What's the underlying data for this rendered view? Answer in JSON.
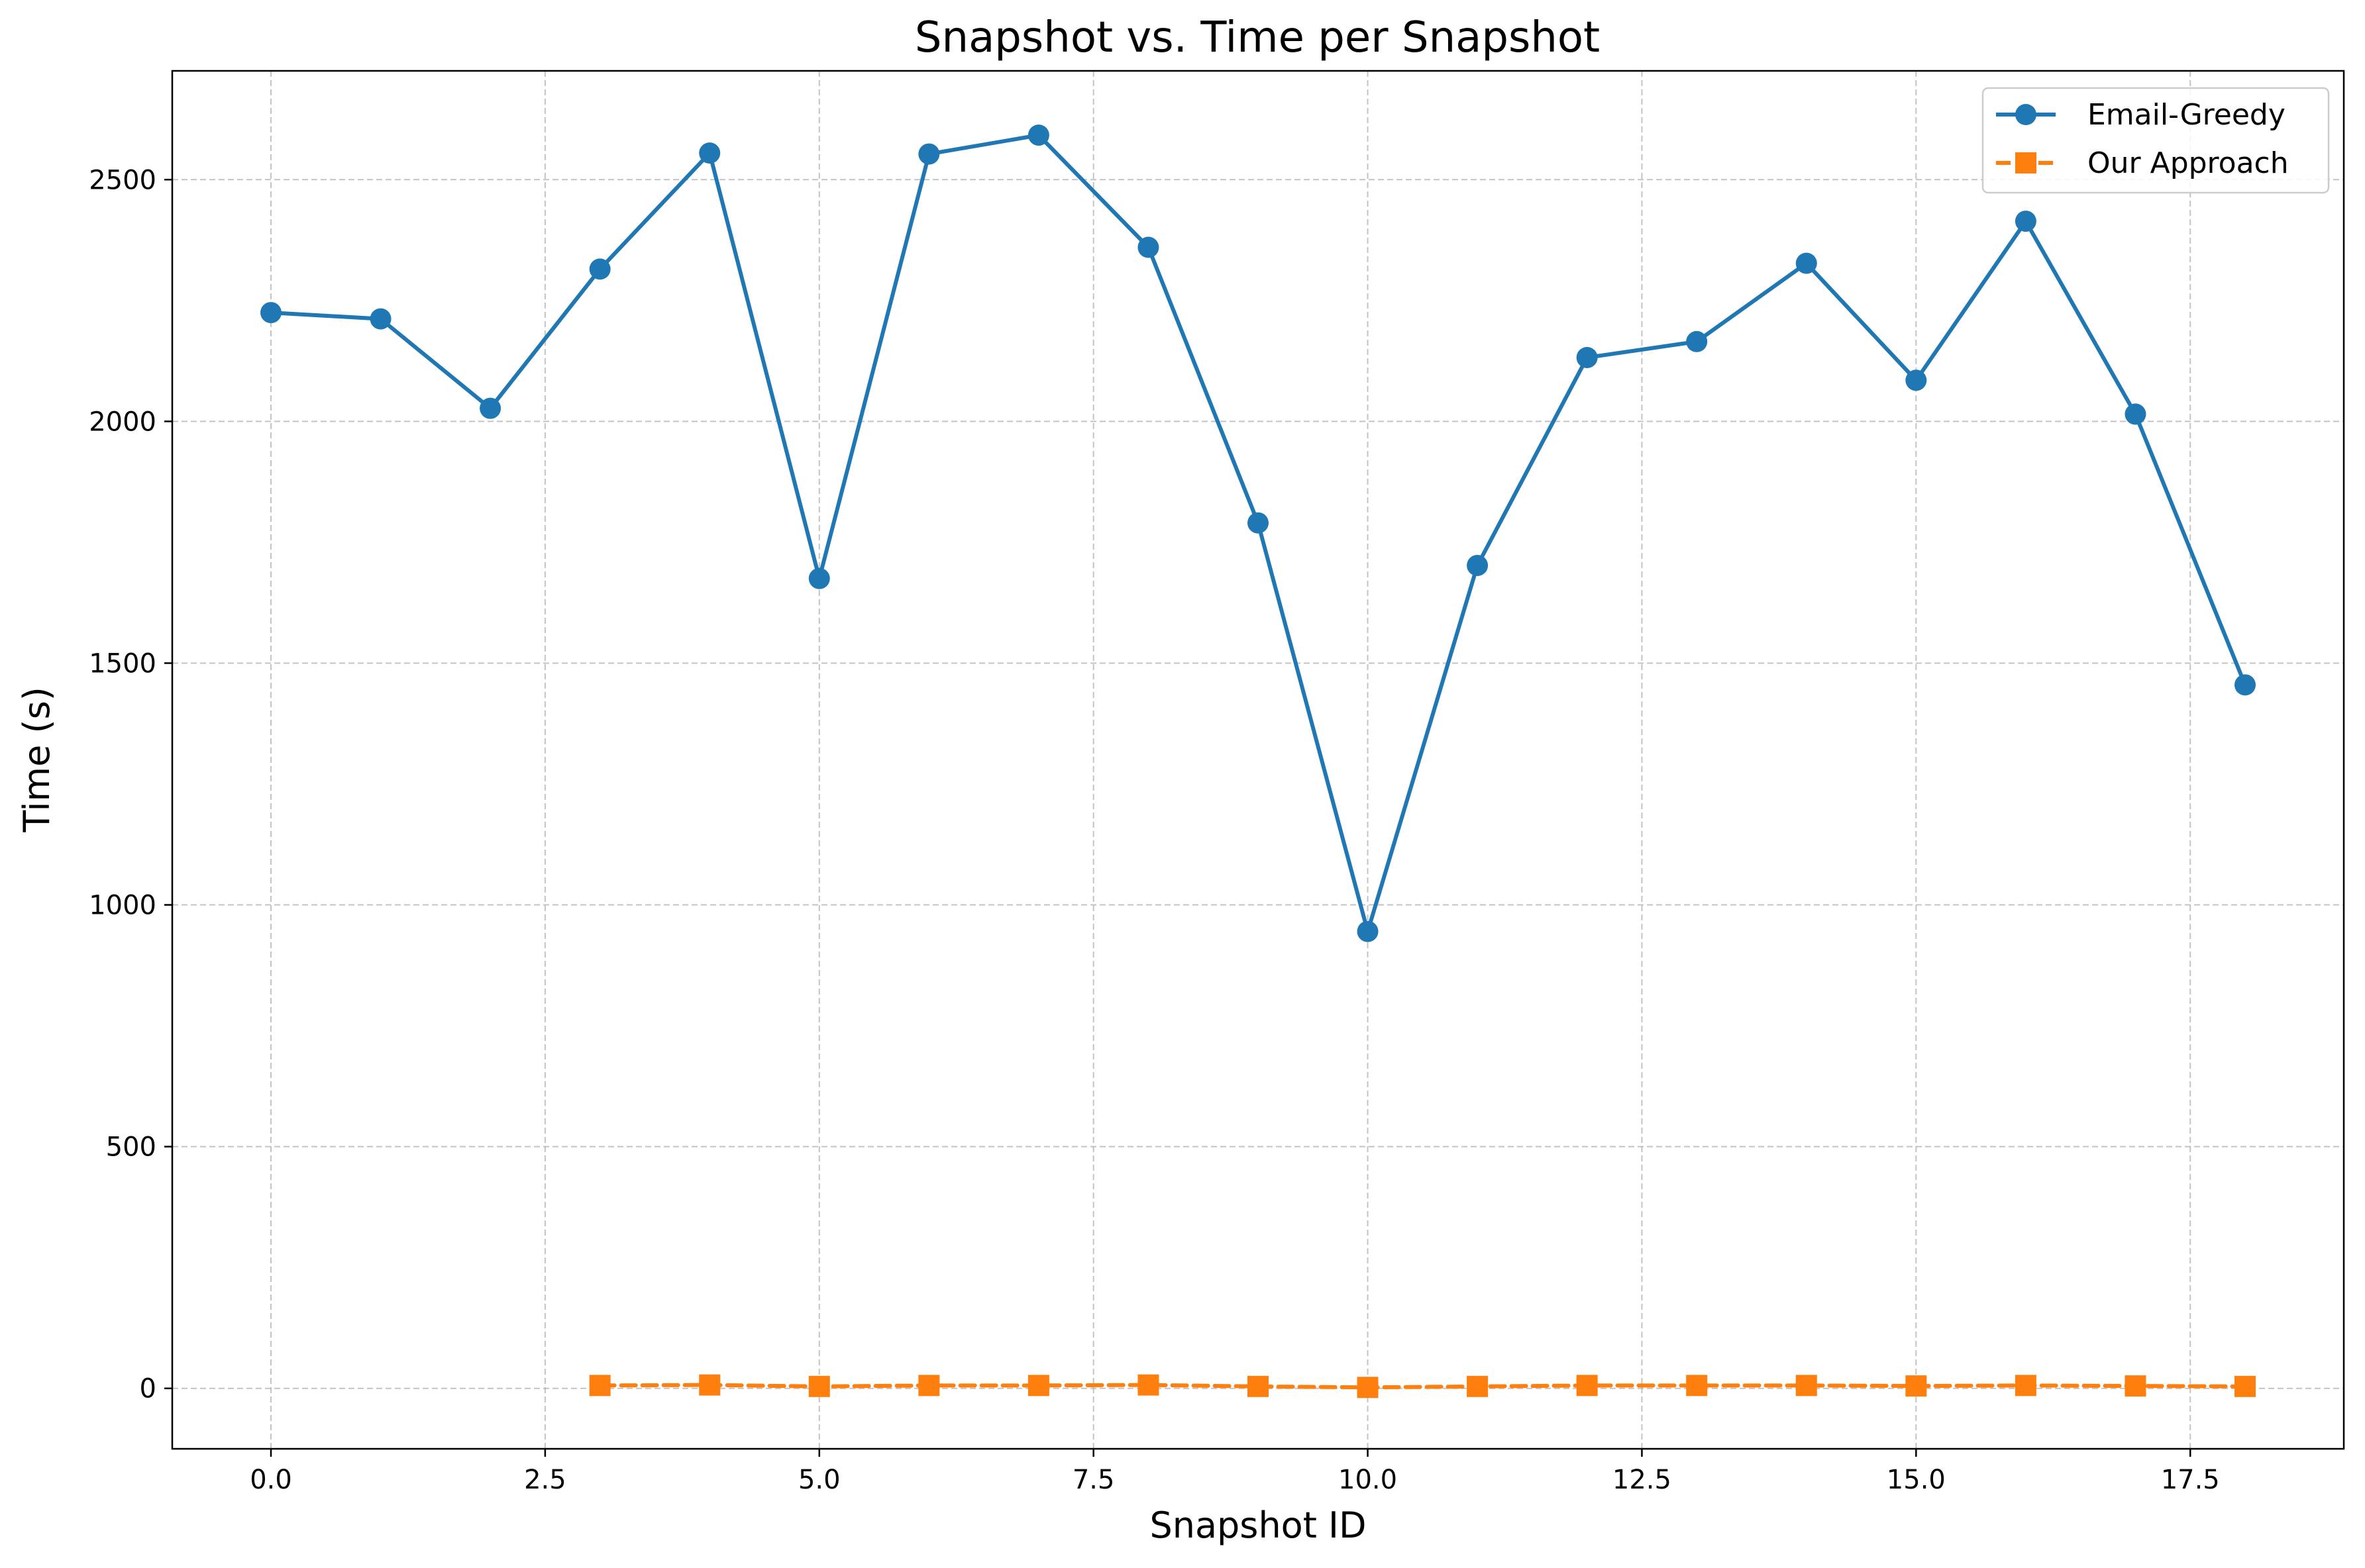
{
  "chart_data": {
    "type": "line",
    "title": "Snapshot vs. Time per Snapshot",
    "xlabel": "Snapshot ID",
    "ylabel": "Time (s)",
    "xlim": [
      -0.9,
      18.9
    ],
    "ylim": [
      -125,
      2725
    ],
    "x_ticks": [
      0.0,
      2.5,
      5.0,
      7.5,
      10.0,
      12.5,
      15.0,
      17.5
    ],
    "x_tick_labels": [
      "0.0",
      "2.5",
      "5.0",
      "7.5",
      "10.0",
      "12.5",
      "15.0",
      "17.5"
    ],
    "y_ticks": [
      0,
      500,
      1000,
      1500,
      2000,
      2500
    ],
    "y_tick_labels": [
      "0",
      "500",
      "1000",
      "1500",
      "2000",
      "2500"
    ],
    "grid": true,
    "legend_position": "top-right",
    "series": [
      {
        "name": "Email-Greedy",
        "color": "#1f77b4",
        "line_style": "solid",
        "marker": "circle",
        "x": [
          0,
          1,
          2,
          3,
          4,
          5,
          6,
          7,
          8,
          9,
          10,
          11,
          12,
          13,
          14,
          15,
          16,
          17,
          18
        ],
        "values": [
          2225,
          2212,
          2027,
          2315,
          2555,
          1675,
          2553,
          2592,
          2360,
          1790,
          945,
          1702,
          2132,
          2165,
          2327,
          2085,
          2414,
          2015,
          1455
        ]
      },
      {
        "name": "Our Approach",
        "color": "#ff7f0e",
        "line_style": "dashed",
        "marker": "square",
        "x": [
          3,
          4,
          5,
          6,
          7,
          8,
          9,
          10,
          11,
          12,
          13,
          14,
          15,
          16,
          17,
          18
        ],
        "values": [
          6,
          7,
          4,
          6,
          6,
          7,
          4,
          2,
          4,
          6,
          6,
          6,
          5,
          6,
          5,
          4
        ]
      }
    ]
  }
}
